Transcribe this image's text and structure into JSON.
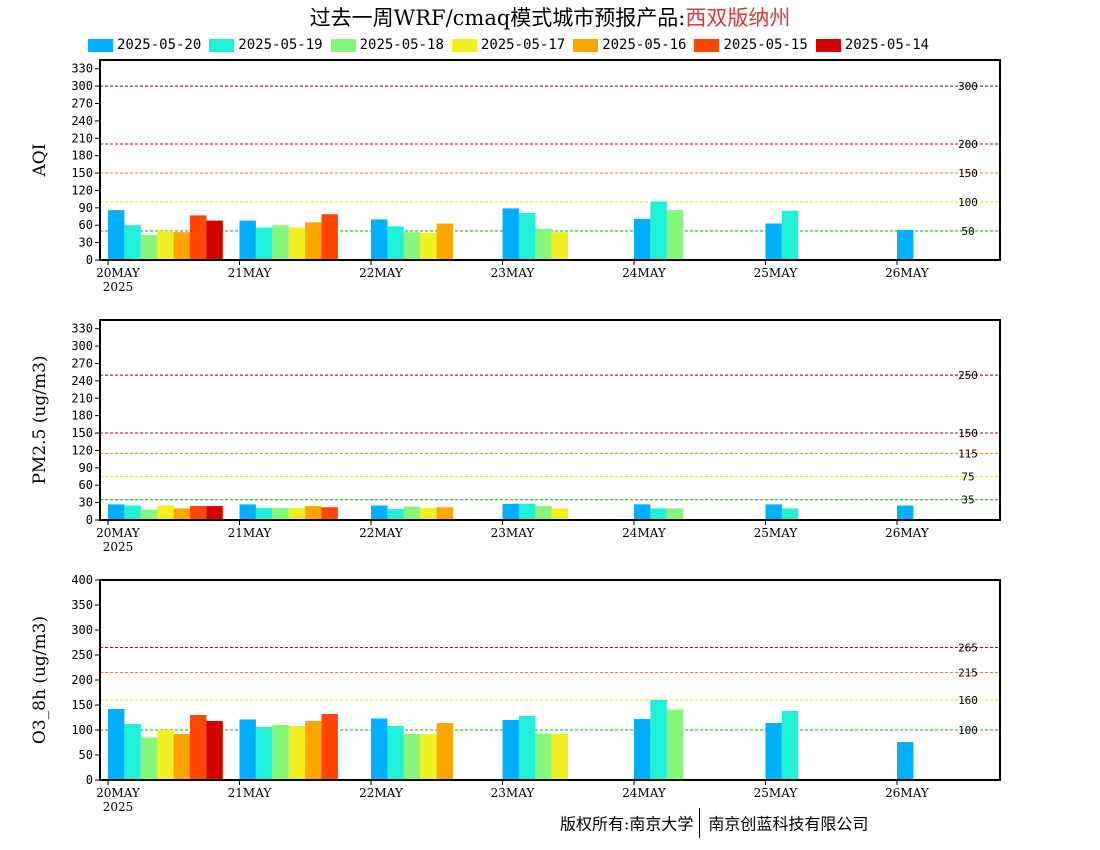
{
  "title": {
    "prefix": "过去一周WRF/cmaq模式城市预报产品:",
    "city": "西双版纳州"
  },
  "colors": {
    "series": [
      "#00b0ff",
      "#1ff0d8",
      "#86f57a",
      "#f0f020",
      "#ffa500",
      "#ff4500",
      "#d40000"
    ],
    "threshold_levels": {
      "50": "#00b400",
      "100": "#e6e600",
      "150": "#ff7e00",
      "200": "#cc0000",
      "300": "#7e0023"
    }
  },
  "legend": [
    "2025-05-20",
    "2025-05-19",
    "2025-05-18",
    "2025-05-17",
    "2025-05-16",
    "2025-05-15",
    "2025-05-14"
  ],
  "chart_data": [
    {
      "type": "bar",
      "ylabel": "AQI",
      "ylim": [
        0,
        345
      ],
      "yticks": [
        0,
        30,
        60,
        90,
        120,
        150,
        180,
        210,
        240,
        270,
        300,
        330
      ],
      "categories": [
        "20MAY",
        "21MAY",
        "22MAY",
        "23MAY",
        "24MAY",
        "25MAY",
        "26MAY"
      ],
      "year_label": "2025",
      "thresholds": [
        {
          "value": 50,
          "label": "50",
          "color": "#00b400"
        },
        {
          "value": 100,
          "label": "100",
          "color": "#e6e600"
        },
        {
          "value": 150,
          "label": "150",
          "color": "#ff7e00"
        },
        {
          "value": 200,
          "label": "200",
          "color": "#cc0000"
        },
        {
          "value": 300,
          "label": "300",
          "color": "#7e0023"
        }
      ],
      "series": [
        {
          "name": "2025-05-20",
          "values": [
            86,
            68,
            70,
            89,
            71,
            63,
            52
          ]
        },
        {
          "name": "2025-05-19",
          "values": [
            60,
            56,
            58,
            81,
            101,
            85,
            null
          ]
        },
        {
          "name": "2025-05-18",
          "values": [
            43,
            60,
            48,
            54,
            86,
            null,
            null
          ]
        },
        {
          "name": "2025-05-17",
          "values": [
            50,
            56,
            47,
            48,
            null,
            null,
            null
          ]
        },
        {
          "name": "2025-05-16",
          "values": [
            48,
            65,
            63,
            null,
            null,
            null,
            null
          ]
        },
        {
          "name": "2025-05-15",
          "values": [
            77,
            79,
            null,
            null,
            null,
            null,
            null
          ]
        },
        {
          "name": "2025-05-14",
          "values": [
            68,
            null,
            null,
            null,
            null,
            null,
            null
          ]
        }
      ]
    },
    {
      "type": "bar",
      "ylabel": "PM2.5 (ug/m3)",
      "ylim": [
        0,
        345
      ],
      "yticks": [
        0,
        30,
        60,
        90,
        120,
        150,
        180,
        210,
        240,
        270,
        300,
        330
      ],
      "categories": [
        "20MAY",
        "21MAY",
        "22MAY",
        "23MAY",
        "24MAY",
        "25MAY",
        "26MAY"
      ],
      "year_label": "2025",
      "thresholds": [
        {
          "value": 35,
          "label": "35",
          "color": "#00b400"
        },
        {
          "value": 75,
          "label": "75",
          "color": "#e6e600"
        },
        {
          "value": 115,
          "label": "115",
          "color": "#ff7e00"
        },
        {
          "value": 150,
          "label": "150",
          "color": "#cc0000"
        },
        {
          "value": 250,
          "label": "250",
          "color": "#7e0023"
        }
      ],
      "series": [
        {
          "name": "2025-05-20",
          "values": [
            27,
            27,
            25,
            28,
            27,
            27,
            25
          ]
        },
        {
          "name": "2025-05-19",
          "values": [
            25,
            21,
            19,
            28,
            20,
            20,
            null
          ]
        },
        {
          "name": "2025-05-18",
          "values": [
            18,
            21,
            23,
            24,
            20,
            null,
            null
          ]
        },
        {
          "name": "2025-05-17",
          "values": [
            25,
            21,
            21,
            20,
            null,
            null,
            null
          ]
        },
        {
          "name": "2025-05-16",
          "values": [
            20,
            24,
            22,
            null,
            null,
            null,
            null
          ]
        },
        {
          "name": "2025-05-15",
          "values": [
            24,
            22,
            null,
            null,
            null,
            null,
            null
          ]
        },
        {
          "name": "2025-05-14",
          "values": [
            24,
            null,
            null,
            null,
            null,
            null,
            null
          ]
        }
      ]
    },
    {
      "type": "bar",
      "ylabel": "O3_8h (ug/m3)",
      "ylim": [
        0,
        400
      ],
      "yticks": [
        0,
        50,
        100,
        150,
        200,
        250,
        300,
        350,
        400
      ],
      "categories": [
        "20MAY",
        "21MAY",
        "22MAY",
        "23MAY",
        "24MAY",
        "25MAY",
        "26MAY"
      ],
      "year_label": "2025",
      "thresholds": [
        {
          "value": 100,
          "label": "100",
          "color": "#00b400"
        },
        {
          "value": 160,
          "label": "160",
          "color": "#e6e600"
        },
        {
          "value": 215,
          "label": "215",
          "color": "#ff7e00"
        },
        {
          "value": 265,
          "label": "265",
          "color": "#cc0000"
        }
      ],
      "series": [
        {
          "name": "2025-05-20",
          "values": [
            142,
            121,
            123,
            120,
            122,
            114,
            76
          ]
        },
        {
          "name": "2025-05-19",
          "values": [
            112,
            106,
            108,
            128,
            160,
            138,
            null
          ]
        },
        {
          "name": "2025-05-18",
          "values": [
            85,
            110,
            92,
            93,
            141,
            null,
            null
          ]
        },
        {
          "name": "2025-05-17",
          "values": [
            100,
            108,
            92,
            92,
            null,
            null,
            null
          ]
        },
        {
          "name": "2025-05-16",
          "values": [
            92,
            118,
            114,
            null,
            null,
            null,
            null
          ]
        },
        {
          "name": "2025-05-15",
          "values": [
            130,
            132,
            null,
            null,
            null,
            null,
            null
          ]
        },
        {
          "name": "2025-05-14",
          "values": [
            118,
            null,
            null,
            null,
            null,
            null,
            null
          ]
        }
      ]
    }
  ],
  "copyright": {
    "left": "版权所有:南京大学",
    "right": "南京创蓝科技有限公司"
  }
}
